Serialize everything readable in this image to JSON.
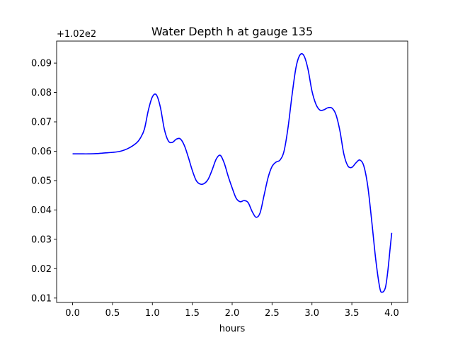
{
  "chart_data": {
    "type": "line",
    "title": "Water Depth h at gauge 135",
    "xlabel": "hours",
    "ylabel": "",
    "offset_text": "+1.02e2",
    "xlim": [
      -0.2,
      4.2
    ],
    "ylim": [
      0.0085,
      0.0975
    ],
    "x_ticks": [
      0.0,
      0.5,
      1.0,
      1.5,
      2.0,
      2.5,
      3.0,
      3.5,
      4.0
    ],
    "x_tick_labels": [
      "0.0",
      "0.5",
      "1.0",
      "1.5",
      "2.0",
      "2.5",
      "3.0",
      "3.5",
      "4.0"
    ],
    "y_ticks": [
      0.01,
      0.02,
      0.03,
      0.04,
      0.05,
      0.06,
      0.07,
      0.08,
      0.09
    ],
    "y_tick_labels": [
      "0.01",
      "0.02",
      "0.03",
      "0.04",
      "0.05",
      "0.06",
      "0.07",
      "0.08",
      "0.09"
    ],
    "grid": false,
    "series": [
      {
        "color": "#0000ff",
        "points": [
          [
            0.0,
            0.0591
          ],
          [
            0.1,
            0.0591
          ],
          [
            0.2,
            0.0591
          ],
          [
            0.3,
            0.0592
          ],
          [
            0.4,
            0.0594
          ],
          [
            0.5,
            0.0596
          ],
          [
            0.6,
            0.06
          ],
          [
            0.7,
            0.061
          ],
          [
            0.8,
            0.0628
          ],
          [
            0.85,
            0.0645
          ],
          [
            0.9,
            0.0675
          ],
          [
            0.95,
            0.074
          ],
          [
            1.0,
            0.0785
          ],
          [
            1.05,
            0.0792
          ],
          [
            1.1,
            0.075
          ],
          [
            1.15,
            0.0675
          ],
          [
            1.2,
            0.0635
          ],
          [
            1.25,
            0.063
          ],
          [
            1.3,
            0.0641
          ],
          [
            1.35,
            0.0642
          ],
          [
            1.4,
            0.062
          ],
          [
            1.45,
            0.058
          ],
          [
            1.5,
            0.0535
          ],
          [
            1.55,
            0.05
          ],
          [
            1.6,
            0.0488
          ],
          [
            1.65,
            0.049
          ],
          [
            1.7,
            0.0505
          ],
          [
            1.75,
            0.0537
          ],
          [
            1.8,
            0.0573
          ],
          [
            1.85,
            0.0586
          ],
          [
            1.9,
            0.056
          ],
          [
            1.95,
            0.0515
          ],
          [
            2.0,
            0.0475
          ],
          [
            2.05,
            0.044
          ],
          [
            2.1,
            0.0428
          ],
          [
            2.15,
            0.0432
          ],
          [
            2.2,
            0.0425
          ],
          [
            2.25,
            0.0395
          ],
          [
            2.3,
            0.0375
          ],
          [
            2.35,
            0.039
          ],
          [
            2.4,
            0.045
          ],
          [
            2.45,
            0.051
          ],
          [
            2.5,
            0.0548
          ],
          [
            2.55,
            0.0563
          ],
          [
            2.6,
            0.057
          ],
          [
            2.65,
            0.06
          ],
          [
            2.7,
            0.068
          ],
          [
            2.75,
            0.079
          ],
          [
            2.8,
            0.0885
          ],
          [
            2.85,
            0.0928
          ],
          [
            2.9,
            0.0925
          ],
          [
            2.95,
            0.088
          ],
          [
            3.0,
            0.0805
          ],
          [
            3.05,
            0.076
          ],
          [
            3.1,
            0.074
          ],
          [
            3.15,
            0.0741
          ],
          [
            3.2,
            0.0748
          ],
          [
            3.25,
            0.0747
          ],
          [
            3.3,
            0.0725
          ],
          [
            3.35,
            0.067
          ],
          [
            3.4,
            0.059
          ],
          [
            3.45,
            0.055
          ],
          [
            3.5,
            0.0545
          ],
          [
            3.55,
            0.056
          ],
          [
            3.6,
            0.057
          ],
          [
            3.65,
            0.055
          ],
          [
            3.7,
            0.048
          ],
          [
            3.75,
            0.036
          ],
          [
            3.8,
            0.023
          ],
          [
            3.85,
            0.0135
          ],
          [
            3.88,
            0.012
          ],
          [
            3.92,
            0.0135
          ],
          [
            3.95,
            0.019
          ],
          [
            3.98,
            0.027
          ],
          [
            4.0,
            0.0322
          ]
        ]
      }
    ]
  }
}
